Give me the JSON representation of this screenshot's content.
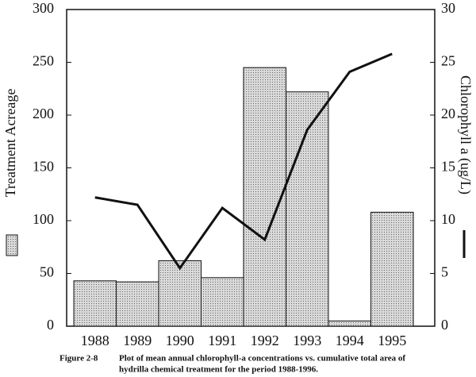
{
  "chart_data": {
    "type": "bar",
    "categories": [
      "1988",
      "1989",
      "1990",
      "1991",
      "1992",
      "1993",
      "1994",
      "1995"
    ],
    "series": [
      {
        "type": "bar",
        "color": "#d9d9d9",
        "values": [
          43,
          42,
          62,
          46,
          245,
          222,
          5,
          108
        ]
      },
      {
        "type": "line",
        "axis": "y2",
        "color": "#111111",
        "values": [
          12.2,
          11.5,
          5.5,
          11.2,
          8.2,
          18.6,
          24.1,
          25.8
        ]
      }
    ],
    "y_label": "Treatment Acreage",
    "y2_label": "Chlorophyll a (ug/L)",
    "ylim": [
      0,
      300
    ],
    "yticks": [
      0,
      50,
      100,
      150,
      200,
      250,
      300
    ],
    "y2lim": [
      0,
      30
    ],
    "y2ticks": [
      0,
      5,
      10,
      15,
      20,
      25,
      30
    ],
    "figure_label": "Figure 2-8",
    "caption_lines": [
      "Plot of mean annual chlorophyll-a concentrations vs.  cumulative total area of",
      "hydrilla chemical treatment for the period 1988-1996."
    ]
  }
}
